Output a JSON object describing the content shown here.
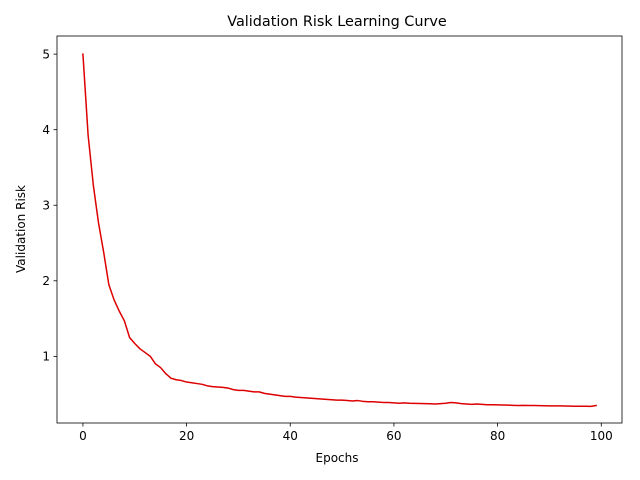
{
  "chart_data": {
    "type": "line",
    "title": "Validation Risk Learning Curve",
    "xlabel": "Epochs",
    "ylabel": "Validation Risk",
    "xlim": [
      -5,
      104
    ],
    "ylim": [
      0.118,
      5.24
    ],
    "xticks": [
      0,
      20,
      40,
      60,
      80,
      100
    ],
    "yticks": [
      1,
      2,
      3,
      4,
      5
    ],
    "grid": false,
    "legend": "none",
    "line_color": "#dd0000",
    "series": [
      {
        "x": [
          0,
          1,
          2,
          3,
          4,
          5,
          6,
          7,
          8,
          9,
          10,
          11,
          12,
          13,
          14,
          15,
          16,
          17,
          18,
          19,
          20,
          21,
          22,
          23,
          24,
          25,
          26,
          27,
          28,
          29,
          30,
          31,
          32,
          33,
          34,
          35,
          36,
          37,
          38,
          39,
          40,
          41,
          42,
          43,
          44,
          45,
          46,
          47,
          48,
          49,
          50,
          51,
          52,
          53,
          54,
          55,
          56,
          57,
          58,
          59,
          60,
          61,
          62,
          63,
          64,
          65,
          66,
          67,
          68,
          69,
          70,
          71,
          72,
          73,
          74,
          75,
          76,
          77,
          78,
          79,
          80,
          81,
          82,
          83,
          84,
          85,
          86,
          87,
          88,
          89,
          90,
          91,
          92,
          93,
          94,
          95,
          96,
          97,
          98,
          99
        ],
        "y": [
          5.0,
          3.93,
          3.27,
          2.77,
          2.38,
          1.95,
          1.75,
          1.6,
          1.47,
          1.25,
          1.17,
          1.1,
          1.05,
          1.0,
          0.9,
          0.85,
          0.77,
          0.71,
          0.69,
          0.68,
          0.66,
          0.65,
          0.64,
          0.63,
          0.61,
          0.6,
          0.595,
          0.59,
          0.58,
          0.56,
          0.55,
          0.55,
          0.54,
          0.53,
          0.53,
          0.51,
          0.5,
          0.49,
          0.48,
          0.47,
          0.47,
          0.46,
          0.455,
          0.45,
          0.445,
          0.44,
          0.435,
          0.43,
          0.425,
          0.42,
          0.42,
          0.415,
          0.41,
          0.415,
          0.405,
          0.4,
          0.4,
          0.395,
          0.39,
          0.39,
          0.385,
          0.38,
          0.385,
          0.38,
          0.378,
          0.376,
          0.375,
          0.373,
          0.37,
          0.375,
          0.38,
          0.39,
          0.385,
          0.375,
          0.37,
          0.365,
          0.37,
          0.365,
          0.36,
          0.36,
          0.358,
          0.356,
          0.355,
          0.352,
          0.35,
          0.352,
          0.35,
          0.35,
          0.348,
          0.346,
          0.345,
          0.345,
          0.344,
          0.343,
          0.342,
          0.34,
          0.34,
          0.339,
          0.338,
          0.35
        ]
      }
    ]
  }
}
